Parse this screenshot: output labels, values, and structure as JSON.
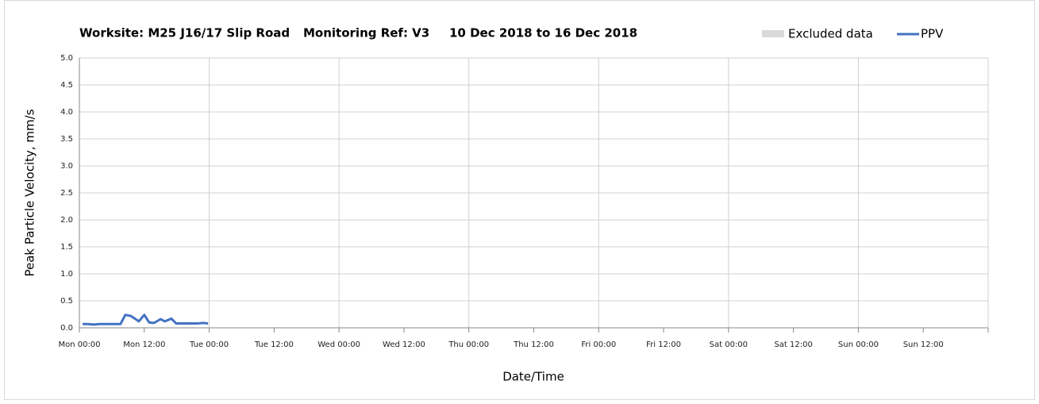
{
  "chart_data": {
    "type": "line",
    "title": "Worksite: M25 J16/17 Slip Road",
    "subtitle": "Monitoring Ref: V3",
    "date_range": "10 Dec 2018 to 16 Dec 2018",
    "x_label": "Date/Time",
    "y_label": "Peak Particle Velocity, mm/s",
    "excluded_data": {
      "name": "Excluded data",
      "color": "#d9d9d9"
    },
    "x": [
      0.6,
      1.5,
      2.6,
      3.8,
      5.9,
      7.6,
      8.5,
      9.5,
      11,
      12,
      12.9,
      13.8,
      15,
      15.8,
      17,
      17.9,
      19.8,
      21.7,
      22.9,
      23.8
    ],
    "series": [
      {
        "name": "PPV",
        "color": "#4472c4",
        "values": [
          0.07,
          0.07,
          0.06,
          0.07,
          0.07,
          0.07,
          0.24,
          0.22,
          0.12,
          0.24,
          0.1,
          0.09,
          0.16,
          0.12,
          0.17,
          0.08,
          0.08,
          0.08,
          0.09,
          0.08
        ]
      }
    ],
    "xlim": [
      0,
      168
    ],
    "xticks": [
      {
        "value": 0,
        "label": "Mon 00:00"
      },
      {
        "value": 12,
        "label": "Mon 12:00"
      },
      {
        "value": 24,
        "label": "Tue 00:00"
      },
      {
        "value": 36,
        "label": "Tue 12:00"
      },
      {
        "value": 48,
        "label": "Wed 00:00"
      },
      {
        "value": 60,
        "label": "Wed 12:00"
      },
      {
        "value": 72,
        "label": "Thu 00:00"
      },
      {
        "value": 84,
        "label": "Thu 12:00"
      },
      {
        "value": 96,
        "label": "Fri 00:00"
      },
      {
        "value": 108,
        "label": "Fri 12:00"
      },
      {
        "value": 120,
        "label": "Sat 00:00"
      },
      {
        "value": 132,
        "label": "Sat 12:00"
      },
      {
        "value": 144,
        "label": "Sun 00:00"
      },
      {
        "value": 156,
        "label": "Sun 12:00"
      }
    ],
    "ylim": [
      0,
      5
    ],
    "yticks": [
      {
        "value": 0,
        "label": "0.0"
      },
      0.5,
      {
        "value": 1,
        "label": "1.0"
      },
      1.5,
      {
        "value": 2,
        "label": "2.0"
      },
      2.5,
      {
        "value": 3,
        "label": "3.0"
      },
      3.5,
      {
        "value": 4,
        "label": "4.0"
      },
      4.5,
      {
        "value": 5,
        "label": "5.0"
      }
    ],
    "grid": true
  }
}
